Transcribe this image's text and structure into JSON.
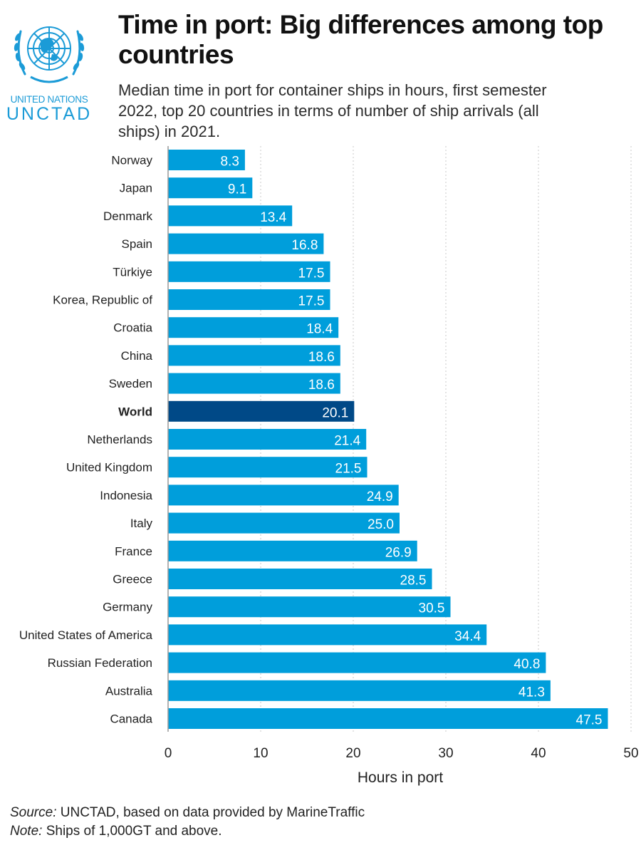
{
  "branding": {
    "org_name": "UNITED NATIONS",
    "org_short": "UNCTAD",
    "logo_icon": "un-emblem-icon",
    "brand_color": "#1b9bd7"
  },
  "chart_data": {
    "type": "bar",
    "orientation": "horizontal",
    "title": "Time in port: Big differences among top countries",
    "subtitle": "Median time in port for container ships in hours, first semester 2022, top 20 countries in terms of number of ship arrivals (all ships) in 2021.",
    "xlabel": "Hours in port",
    "ylabel": "",
    "xlim": [
      0,
      50
    ],
    "xticks": [
      0,
      10,
      20,
      30,
      40,
      50
    ],
    "grid": "vertical-dotted",
    "categories": [
      "Norway",
      "Japan",
      "Denmark",
      "Spain",
      "Türkiye",
      "Korea, Republic of",
      "Croatia",
      "China",
      "Sweden",
      "World",
      "Netherlands",
      "United Kingdom",
      "Indonesia",
      "Italy",
      "France",
      "Greece",
      "Germany",
      "United States of America",
      "Russian Federation",
      "Australia",
      "Canada"
    ],
    "values": [
      8.3,
      9.1,
      13.4,
      16.8,
      17.5,
      17.5,
      18.4,
      18.6,
      18.6,
      20.1,
      21.4,
      21.5,
      24.9,
      25.0,
      26.9,
      28.5,
      30.5,
      34.4,
      40.8,
      41.3,
      47.5
    ],
    "value_labels": [
      "8.3",
      "9.1",
      "13.4",
      "16.8",
      "17.5",
      "17.5",
      "18.4",
      "18.6",
      "18.6",
      "20.1",
      "21.4",
      "21.5",
      "24.9",
      "25.0",
      "26.9",
      "28.5",
      "30.5",
      "34.4",
      "40.8",
      "41.3",
      "47.5"
    ],
    "highlight_category": "World",
    "colors": {
      "bar": "#009edb",
      "highlight": "#004987",
      "label": "#ffffff",
      "grid": "#c8c8c8"
    }
  },
  "footer": {
    "source_label": "Source:",
    "source_text": " UNCTAD, based on data provided by MarineTraffic",
    "note_label": "Note:",
    "note_text": " Ships of 1,000GT and above."
  }
}
